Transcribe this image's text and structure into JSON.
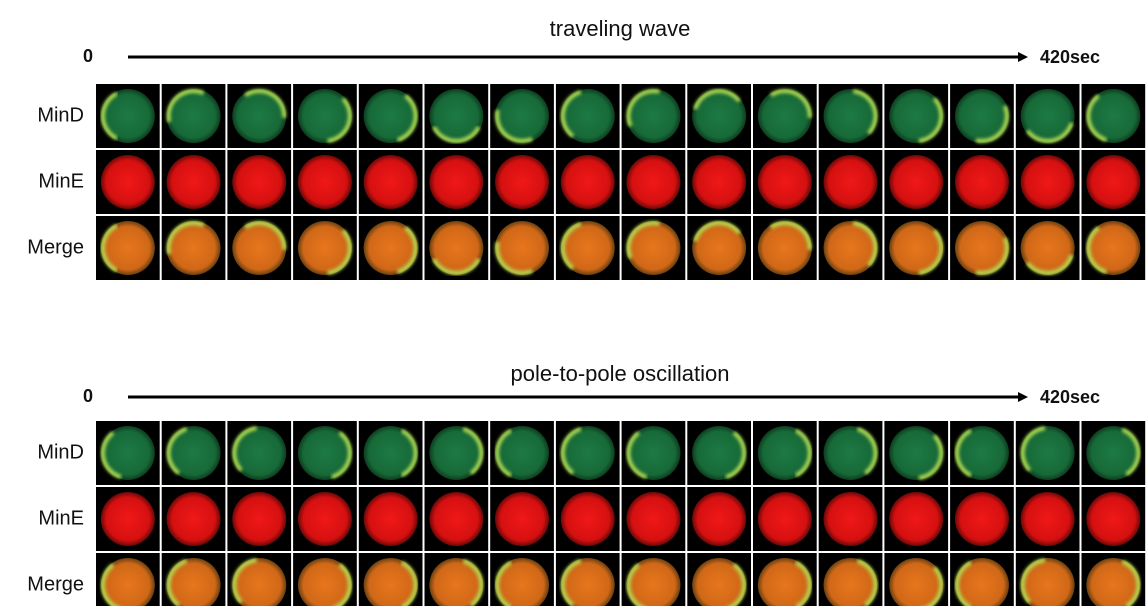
{
  "panels": [
    {
      "title": "traveling wave",
      "start": "0",
      "end": "420sec",
      "rows": [
        "MinD",
        "MinE",
        "Merge"
      ]
    },
    {
      "title": "pole-to-pole oscillation",
      "start": "0",
      "end": "420sec",
      "rows": [
        "MinD",
        "MinE",
        "Merge"
      ]
    }
  ]
}
